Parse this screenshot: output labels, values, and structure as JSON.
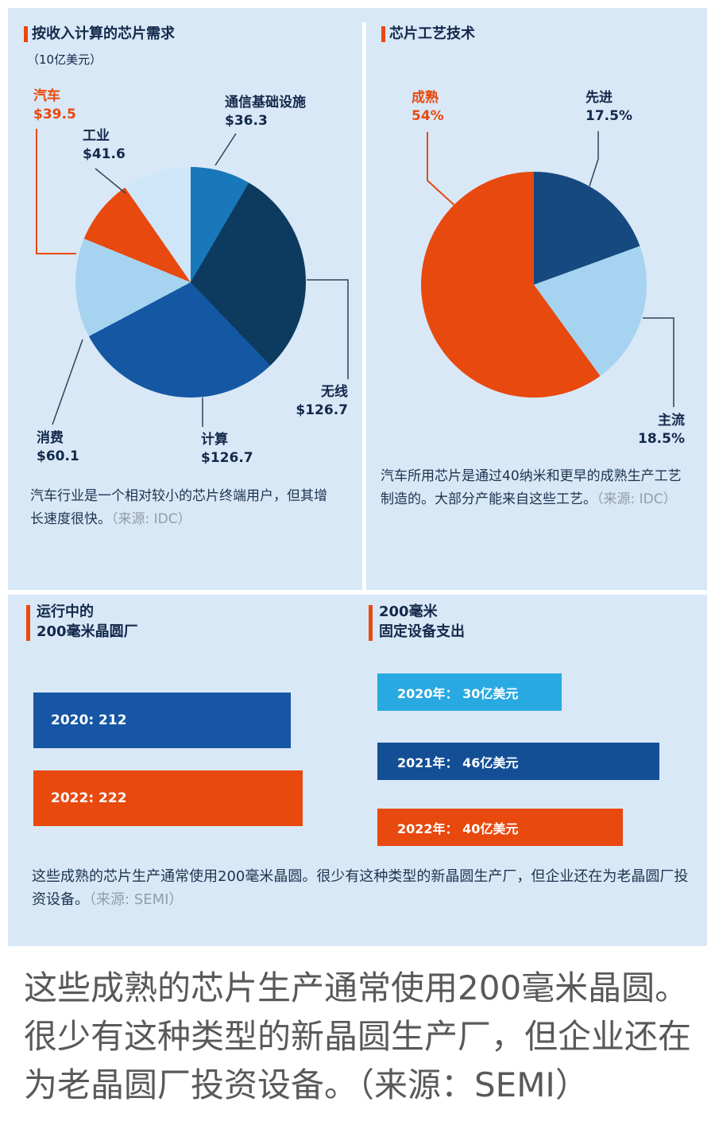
{
  "colors": {
    "background": "#d9e8f6",
    "accent_orange": "#e8490e",
    "navy_text": "#13294b",
    "source_gray": "#909dab",
    "big_text_gray": "#58595b"
  },
  "chart_data": [
    {
      "type": "pie",
      "title": "按收入计算的芯片需求",
      "subtitle": "（10亿美元）",
      "slices": [
        {
          "label": "通信基础设施",
          "value": 36.3,
          "value_text": "$36.3",
          "color": "#1878ba"
        },
        {
          "label": "无线",
          "value": 126.7,
          "value_text": "$126.7",
          "color": "#0d3a5f"
        },
        {
          "label": "计算",
          "value": 126.7,
          "value_text": "$126.7",
          "color": "#1458a4"
        },
        {
          "label": "消费",
          "value": 60.1,
          "value_text": "$60.1",
          "color": "#a6d3f0"
        },
        {
          "label": "汽车",
          "value": 39.5,
          "value_text": "$39.5",
          "color": "#e8490e"
        },
        {
          "label": "工业",
          "value": 41.6,
          "value_text": "$41.6",
          "color": "#cfe6f9"
        }
      ],
      "caption": "汽车行业是一个相对较小的芯片终端用户，但其增长速度很快。",
      "source": "（来源: IDC）"
    },
    {
      "type": "pie",
      "title": "芯片工艺技术",
      "slices": [
        {
          "label": "先进",
          "value": 17.5,
          "value_text": "17.5%",
          "color": "#15497f"
        },
        {
          "label": "主流",
          "value": 18.5,
          "value_text": "18.5%",
          "color": "#a6d3f0"
        },
        {
          "label": "成熟",
          "value": 54,
          "value_text": "54%",
          "color": "#e8490e"
        }
      ],
      "caption": "汽车所用芯片是通过40纳米和更早的成熟生产工艺制造的。大部分产能来自这些工艺。",
      "source": "（来源: IDC）"
    },
    {
      "type": "bar",
      "title_lines": [
        "运行中的",
        "200毫米晶圆厂"
      ],
      "xmax": 222,
      "bars": [
        {
          "label": "2020: 212",
          "value": 212,
          "color": "#1656a4"
        },
        {
          "label": "2022: 222",
          "value": 222,
          "color": "#e8490e"
        }
      ]
    },
    {
      "type": "bar",
      "title_lines": [
        "200毫米",
        "固定设备支出"
      ],
      "xmax": 46,
      "bars": [
        {
          "label": "2020年： 30亿美元",
          "value": 30,
          "color": "#29a9e1"
        },
        {
          "label": "2021年： 46亿美元",
          "value": 46,
          "color": "#144f96"
        },
        {
          "label": "2022年： 40亿美元",
          "value": 40,
          "color": "#e8490e"
        }
      ]
    }
  ],
  "footer_caption": {
    "text": "这些成熟的芯片生产通常使用200毫米晶圆。很少有这种类型的新晶圆生产厂，但企业还在为老晶圆厂投资设备。",
    "source": "（来源: SEMI）"
  },
  "big_text": {
    "lines": [
      "这些成熟的芯片生产通常使用200毫米晶圆。",
      "很少有这种类型的新晶圆生产厂，但企业还在",
      "为老晶圆厂投资设备。（来源：SEMI）"
    ]
  }
}
